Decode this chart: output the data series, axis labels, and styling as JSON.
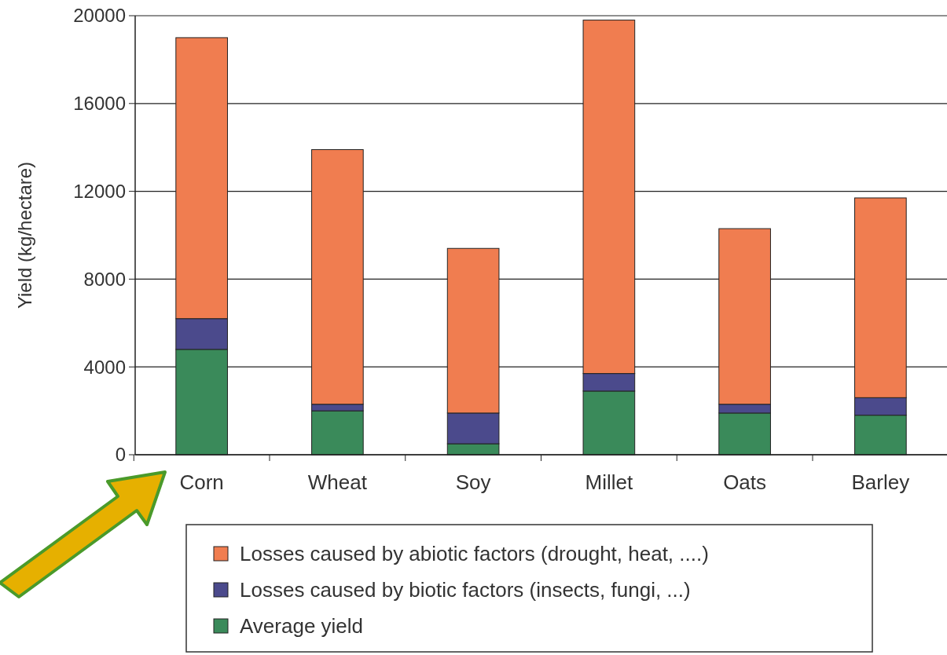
{
  "chart_data": {
    "type": "bar",
    "stacked": true,
    "ylabel": "Yield (kg/hectare)",
    "categories": [
      "Corn",
      "Wheat",
      "Soy",
      "Millet",
      "Oats",
      "Barley"
    ],
    "series": [
      {
        "name": "Average yield",
        "color": "#3a8a5a",
        "values": [
          4800,
          2000,
          500,
          2900,
          1900,
          1800
        ]
      },
      {
        "name": "Losses caused by biotic factors (insects, fungi, ...)",
        "color": "#4b4a8c",
        "values": [
          1400,
          300,
          1400,
          800,
          400,
          800
        ]
      },
      {
        "name": "Losses caused by abiotic factors (drought, heat, ....)",
        "color": "#f07d50",
        "values": [
          12800,
          11600,
          7500,
          16100,
          8000,
          9100
        ]
      }
    ],
    "ylim": [
      0,
      20000
    ],
    "yticks": [
      0,
      4000,
      8000,
      12000,
      16000,
      20000
    ],
    "grid": "y",
    "legend": "bottom"
  }
}
